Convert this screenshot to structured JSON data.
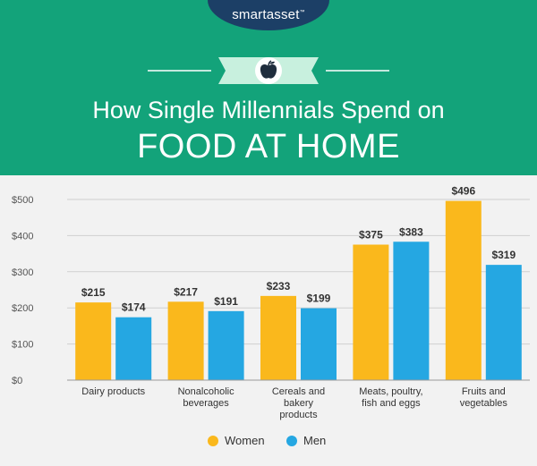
{
  "header": {
    "brand": "smartasset",
    "title_line1": "How Single Millennials Spend on",
    "title_line2": "FOOD AT HOME",
    "badge_icon": "apple-icon"
  },
  "colors": {
    "header_bg": "#13a37a",
    "logo_bg": "#1c3f66",
    "women": "#fab81c",
    "men": "#25a7e2",
    "ribbon": "#c8f0de"
  },
  "chart_data": {
    "type": "bar",
    "categories": [
      [
        "Dairy products"
      ],
      [
        "Nonalcoholic",
        "beverages"
      ],
      [
        "Cereals and",
        "bakery",
        "products"
      ],
      [
        "Meats, poultry,",
        "fish and eggs"
      ],
      [
        "Fruits and",
        "vegetables"
      ]
    ],
    "series": [
      {
        "name": "Women",
        "values": [
          215,
          217,
          233,
          375,
          496
        ],
        "labels": [
          "$215",
          "$217",
          "$233",
          "$375",
          "$496"
        ]
      },
      {
        "name": "Men",
        "values": [
          174,
          191,
          199,
          383,
          319
        ],
        "labels": [
          "$174",
          "$191",
          "$199",
          "$383",
          "$319"
        ]
      }
    ],
    "yticks": [
      "$0",
      "$100",
      "$200",
      "$300",
      "$400",
      "$500"
    ],
    "ylim": [
      0,
      500
    ],
    "grid": true,
    "legend_position": "bottom"
  }
}
